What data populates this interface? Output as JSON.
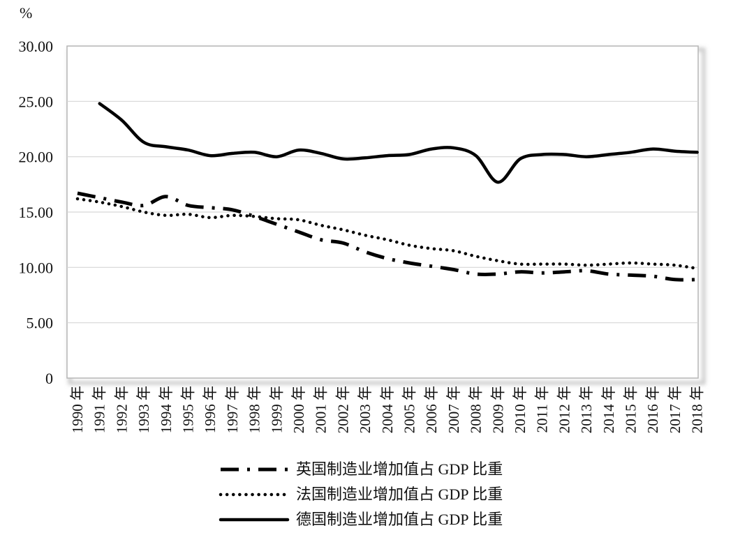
{
  "chart_data": {
    "type": "line",
    "unit_label": "%",
    "ylim": [
      0,
      30
    ],
    "y_ticks": [
      "0",
      "5.00",
      "10.00",
      "15.00",
      "20.00",
      "25.00",
      "30.00"
    ],
    "y_tick_values": [
      0,
      5,
      10,
      15,
      20,
      25,
      30
    ],
    "categories": [
      "1990 年",
      "1991 年",
      "1992 年",
      "1993 年",
      "1994 年",
      "1995 年",
      "1996 年",
      "1997 年",
      "1998 年",
      "1999 年",
      "2000 年",
      "2001 年",
      "2002 年",
      "2003 年",
      "2004 年",
      "2005 年",
      "2006 年",
      "2007 年",
      "2008 年",
      "2009 年",
      "2010 年",
      "2011 年",
      "2012 年",
      "2013 年",
      "2014 年",
      "2015 年",
      "2016 年",
      "2017 年",
      "2018 年"
    ],
    "grid": "horizontal",
    "legend_position": "bottom",
    "series": [
      {
        "name": "英国制造业增加值占 GDP 比重",
        "style": "dash-dot",
        "values": [
          16.7,
          16.3,
          15.9,
          15.6,
          16.4,
          15.6,
          15.4,
          15.2,
          14.6,
          13.9,
          13.2,
          12.5,
          12.2,
          11.4,
          10.8,
          10.4,
          10.1,
          9.8,
          9.4,
          9.4,
          9.6,
          9.5,
          9.6,
          9.7,
          9.4,
          9.3,
          9.2,
          8.9,
          8.9
        ]
      },
      {
        "name": "法国制造业增加值占 GDP 比重",
        "style": "dotted",
        "values": [
          16.2,
          15.9,
          15.5,
          15.0,
          14.7,
          14.8,
          14.5,
          14.7,
          14.6,
          14.4,
          14.3,
          13.8,
          13.4,
          12.9,
          12.5,
          12.0,
          11.7,
          11.5,
          11.0,
          10.6,
          10.3,
          10.3,
          10.3,
          10.2,
          10.3,
          10.4,
          10.3,
          10.2,
          9.9
        ]
      },
      {
        "name": "德国制造业增加值占 GDP 比重",
        "style": "solid",
        "values": [
          null,
          24.8,
          23.3,
          21.3,
          20.9,
          20.6,
          20.1,
          20.3,
          20.4,
          20.0,
          20.6,
          20.3,
          19.8,
          19.9,
          20.1,
          20.2,
          20.7,
          20.8,
          20.1,
          17.7,
          19.8,
          20.2,
          20.2,
          20.0,
          20.2,
          20.4,
          20.7,
          20.5,
          20.4
        ]
      }
    ]
  }
}
